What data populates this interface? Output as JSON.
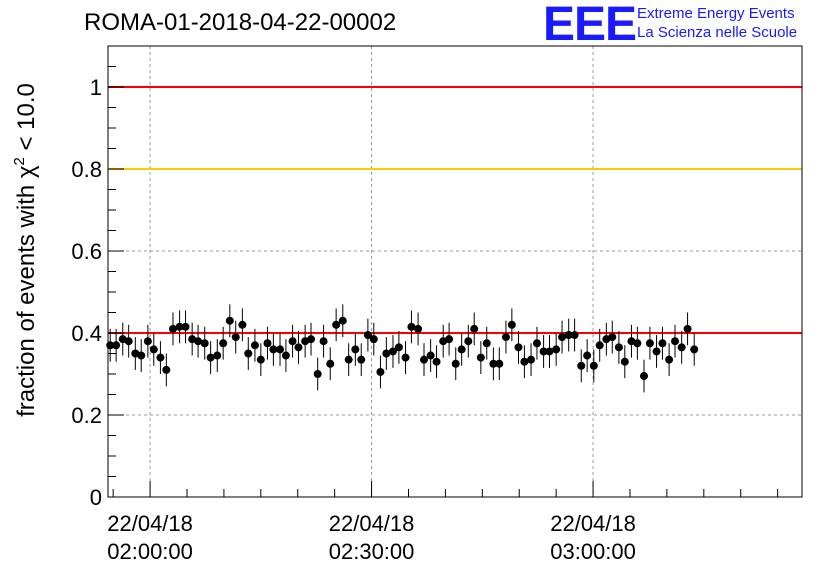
{
  "header": {
    "title": "ROMA-01-2018-04-22-00002",
    "logo_text": "EEE",
    "org_line1": "Extreme Energy Events",
    "org_line2": "La Scienza nelle Scuole"
  },
  "colors": {
    "upper_reference_line": "#ff0000",
    "warning_line": "#ffcc00",
    "lower_reference_line": "#ff0000",
    "points": "#000000",
    "logo": "#1a1aff"
  },
  "chart_data": {
    "type": "scatter",
    "title": "ROMA-01-2018-04-22-00002",
    "ylabel_prefix": "fraction of events with ",
    "ylabel_chi": "χ",
    "ylabel_sup": "2",
    "ylabel_suffix": " < 10.0",
    "xlabel": "",
    "ylim": [
      0,
      1.1
    ],
    "y_ticks": [
      "0",
      "0.2",
      "0.4",
      "0.6",
      "0.8",
      "1"
    ],
    "y_tick_values": [
      0,
      0.2,
      0.4,
      0.6,
      0.8,
      1
    ],
    "x_ticks": [
      {
        "date": "22/04/18",
        "time": "02:00:00",
        "minutes": 0
      },
      {
        "date": "22/04/18",
        "time": "02:30:00",
        "minutes": 30
      },
      {
        "date": "22/04/18",
        "time": "03:00:00",
        "minutes": 60
      }
    ],
    "x_unit": "minutes after 22/04/18 02:00:00",
    "xlim": [
      -5.7,
      88.3
    ],
    "grid": true,
    "reference_lines": [
      {
        "y": 1.0,
        "color": "#ff0000"
      },
      {
        "y": 0.8,
        "color": "#ffcc00"
      },
      {
        "y": 0.4,
        "color": "#ff0000"
      }
    ],
    "y_error": 0.04,
    "points": [
      {
        "x": -5.4,
        "y": 0.37
      },
      {
        "x": -4.6,
        "y": 0.37
      },
      {
        "x": -3.7,
        "y": 0.385
      },
      {
        "x": -2.9,
        "y": 0.38
      },
      {
        "x": -2.0,
        "y": 0.35
      },
      {
        "x": -1.2,
        "y": 0.345
      },
      {
        "x": -0.3,
        "y": 0.38
      },
      {
        "x": 0.5,
        "y": 0.36
      },
      {
        "x": 1.4,
        "y": 0.34
      },
      {
        "x": 2.2,
        "y": 0.31
      },
      {
        "x": 3.1,
        "y": 0.41
      },
      {
        "x": 4.0,
        "y": 0.415
      },
      {
        "x": 4.8,
        "y": 0.415
      },
      {
        "x": 5.7,
        "y": 0.385
      },
      {
        "x": 6.5,
        "y": 0.38
      },
      {
        "x": 7.4,
        "y": 0.375
      },
      {
        "x": 8.2,
        "y": 0.34
      },
      {
        "x": 9.1,
        "y": 0.345
      },
      {
        "x": 9.9,
        "y": 0.375
      },
      {
        "x": 10.8,
        "y": 0.43
      },
      {
        "x": 11.6,
        "y": 0.39
      },
      {
        "x": 12.5,
        "y": 0.42
      },
      {
        "x": 13.3,
        "y": 0.35
      },
      {
        "x": 14.2,
        "y": 0.37
      },
      {
        "x": 15.0,
        "y": 0.335
      },
      {
        "x": 15.9,
        "y": 0.375
      },
      {
        "x": 16.7,
        "y": 0.36
      },
      {
        "x": 17.6,
        "y": 0.36
      },
      {
        "x": 18.4,
        "y": 0.345
      },
      {
        "x": 19.3,
        "y": 0.38
      },
      {
        "x": 20.1,
        "y": 0.365
      },
      {
        "x": 21.0,
        "y": 0.38
      },
      {
        "x": 21.8,
        "y": 0.385
      },
      {
        "x": 22.7,
        "y": 0.3
      },
      {
        "x": 23.5,
        "y": 0.38
      },
      {
        "x": 24.4,
        "y": 0.325
      },
      {
        "x": 25.2,
        "y": 0.42
      },
      {
        "x": 26.1,
        "y": 0.43
      },
      {
        "x": 26.9,
        "y": 0.335
      },
      {
        "x": 27.8,
        "y": 0.36
      },
      {
        "x": 28.6,
        "y": 0.335
      },
      {
        "x": 29.5,
        "y": 0.395
      },
      {
        "x": 30.3,
        "y": 0.385
      },
      {
        "x": 31.2,
        "y": 0.305
      },
      {
        "x": 32.0,
        "y": 0.35
      },
      {
        "x": 32.9,
        "y": 0.355
      },
      {
        "x": 33.7,
        "y": 0.365
      },
      {
        "x": 34.6,
        "y": 0.34
      },
      {
        "x": 35.4,
        "y": 0.415
      },
      {
        "x": 36.3,
        "y": 0.41
      },
      {
        "x": 37.1,
        "y": 0.335
      },
      {
        "x": 38.0,
        "y": 0.345
      },
      {
        "x": 38.8,
        "y": 0.33
      },
      {
        "x": 39.7,
        "y": 0.38
      },
      {
        "x": 40.5,
        "y": 0.385
      },
      {
        "x": 41.4,
        "y": 0.325
      },
      {
        "x": 42.2,
        "y": 0.36
      },
      {
        "x": 43.1,
        "y": 0.38
      },
      {
        "x": 43.9,
        "y": 0.41
      },
      {
        "x": 44.8,
        "y": 0.34
      },
      {
        "x": 45.6,
        "y": 0.375
      },
      {
        "x": 46.5,
        "y": 0.325
      },
      {
        "x": 47.3,
        "y": 0.325
      },
      {
        "x": 48.2,
        "y": 0.39
      },
      {
        "x": 49.0,
        "y": 0.42
      },
      {
        "x": 49.9,
        "y": 0.365
      },
      {
        "x": 50.7,
        "y": 0.33
      },
      {
        "x": 51.6,
        "y": 0.335
      },
      {
        "x": 52.4,
        "y": 0.375
      },
      {
        "x": 53.3,
        "y": 0.355
      },
      {
        "x": 54.1,
        "y": 0.355
      },
      {
        "x": 55.0,
        "y": 0.36
      },
      {
        "x": 55.8,
        "y": 0.39
      },
      {
        "x": 56.7,
        "y": 0.395
      },
      {
        "x": 57.5,
        "y": 0.395
      },
      {
        "x": 58.4,
        "y": 0.32
      },
      {
        "x": 59.2,
        "y": 0.345
      },
      {
        "x": 60.1,
        "y": 0.32
      },
      {
        "x": 60.9,
        "y": 0.37
      },
      {
        "x": 61.8,
        "y": 0.385
      },
      {
        "x": 62.6,
        "y": 0.39
      },
      {
        "x": 63.5,
        "y": 0.365
      },
      {
        "x": 64.3,
        "y": 0.33
      },
      {
        "x": 65.2,
        "y": 0.38
      },
      {
        "x": 66.0,
        "y": 0.375
      },
      {
        "x": 66.9,
        "y": 0.295
      },
      {
        "x": 67.7,
        "y": 0.375
      },
      {
        "x": 68.6,
        "y": 0.355
      },
      {
        "x": 69.4,
        "y": 0.375
      },
      {
        "x": 70.3,
        "y": 0.335
      },
      {
        "x": 71.1,
        "y": 0.38
      },
      {
        "x": 72.0,
        "y": 0.365
      },
      {
        "x": 72.8,
        "y": 0.41
      },
      {
        "x": 73.7,
        "y": 0.36
      }
    ]
  }
}
